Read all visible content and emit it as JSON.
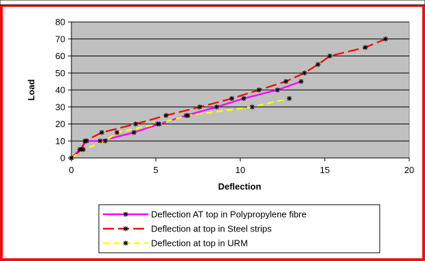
{
  "chart_data": {
    "type": "line",
    "title": "",
    "xlabel": "Deflection",
    "ylabel": "Load",
    "xlim": [
      0,
      20
    ],
    "ylim": [
      0,
      80
    ],
    "xticks": [
      "0",
      "5",
      "10",
      "15",
      "20"
    ],
    "yticks": [
      "0",
      "10",
      "20",
      "30",
      "40",
      "50",
      "60",
      "70",
      "80"
    ],
    "grid": "horizontal",
    "legend_position": "bottom",
    "plot_background": "#c0c0c0",
    "frame_color": "#ee1111",
    "series": [
      {
        "name": "Deflection AT top in Polypropylene fibre",
        "color": "#ff00ff",
        "dash": "solid",
        "x": [
          0,
          0.5,
          0.9,
          1.7,
          3.7,
          5.2,
          6.8,
          8.6,
          10.2,
          12.2,
          13.6
        ],
        "y": [
          0,
          5,
          10,
          10,
          15,
          20,
          25,
          30,
          35,
          40,
          45
        ]
      },
      {
        "name": "Deflection at top in Steel strips",
        "color": "#ee1111",
        "dash": "long-dash",
        "x": [
          0,
          0.6,
          0.8,
          1.8,
          3.8,
          5.6,
          7.6,
          9.5,
          11.1,
          12.7,
          13.8,
          14.6,
          15.3,
          17.4,
          18.6
        ],
        "y": [
          0,
          5,
          10,
          15,
          20,
          25,
          30,
          35,
          40,
          45,
          50,
          55,
          60,
          65,
          70
        ]
      },
      {
        "name": "Deflection at top in URM",
        "color": "#ffff00",
        "dash": "dash",
        "x": [
          0,
          0.7,
          2.0,
          2.7,
          5.1,
          6.9,
          10.7,
          12.9
        ],
        "y": [
          0,
          5,
          10,
          15,
          20,
          25,
          30,
          35
        ]
      }
    ]
  }
}
